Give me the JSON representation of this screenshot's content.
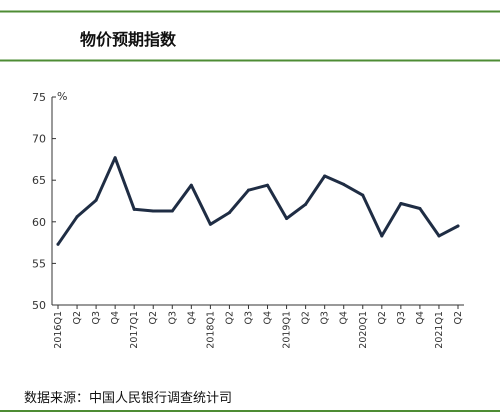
{
  "chart_data": {
    "type": "line",
    "title": "物价预期指数",
    "y_unit": "%",
    "ylim": [
      50,
      75
    ],
    "yticks": [
      50,
      55,
      60,
      65,
      70,
      75
    ],
    "grid": false,
    "legend": "none",
    "line_color": "#1f2d44",
    "frame_color": "#4e8c34",
    "x": [
      "2016Q1",
      "Q2",
      "Q3",
      "Q4",
      "2017Q1",
      "Q2",
      "Q3",
      "Q4",
      "2018Q1",
      "Q2",
      "Q3",
      "Q4",
      "2019Q1",
      "Q2",
      "Q3",
      "Q4",
      "2020Q1",
      "Q2",
      "Q3",
      "Q4",
      "2021Q1",
      "Q2"
    ],
    "values": [
      57.3,
      60.6,
      62.6,
      67.7,
      61.5,
      61.3,
      61.3,
      64.4,
      59.7,
      61.1,
      63.8,
      64.4,
      60.4,
      62.1,
      65.5,
      64.5,
      63.2,
      58.3,
      62.2,
      61.6,
      58.3,
      59.5
    ],
    "source": "数据来源：中国人民银行调查统计司"
  }
}
